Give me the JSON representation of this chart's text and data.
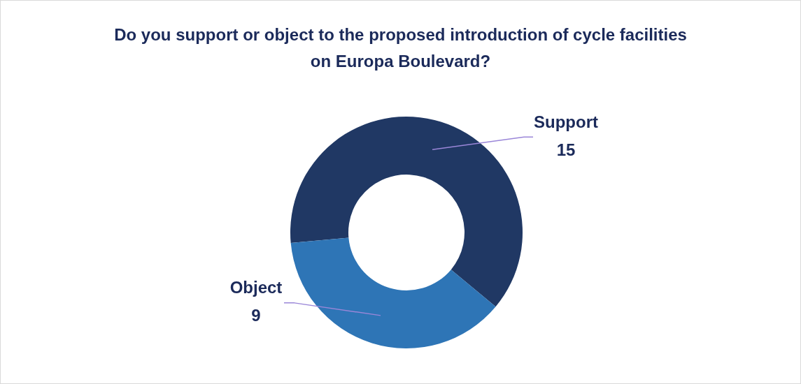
{
  "chart_data": {
    "type": "donut",
    "title": "Do you support or object to the proposed introduction of cycle facilities on Europa Boulevard?",
    "categories": [
      "Support",
      "Object"
    ],
    "values": [
      15,
      9
    ],
    "colors": [
      "#203864",
      "#2e75b6"
    ],
    "data_labels": true,
    "legend": false
  }
}
